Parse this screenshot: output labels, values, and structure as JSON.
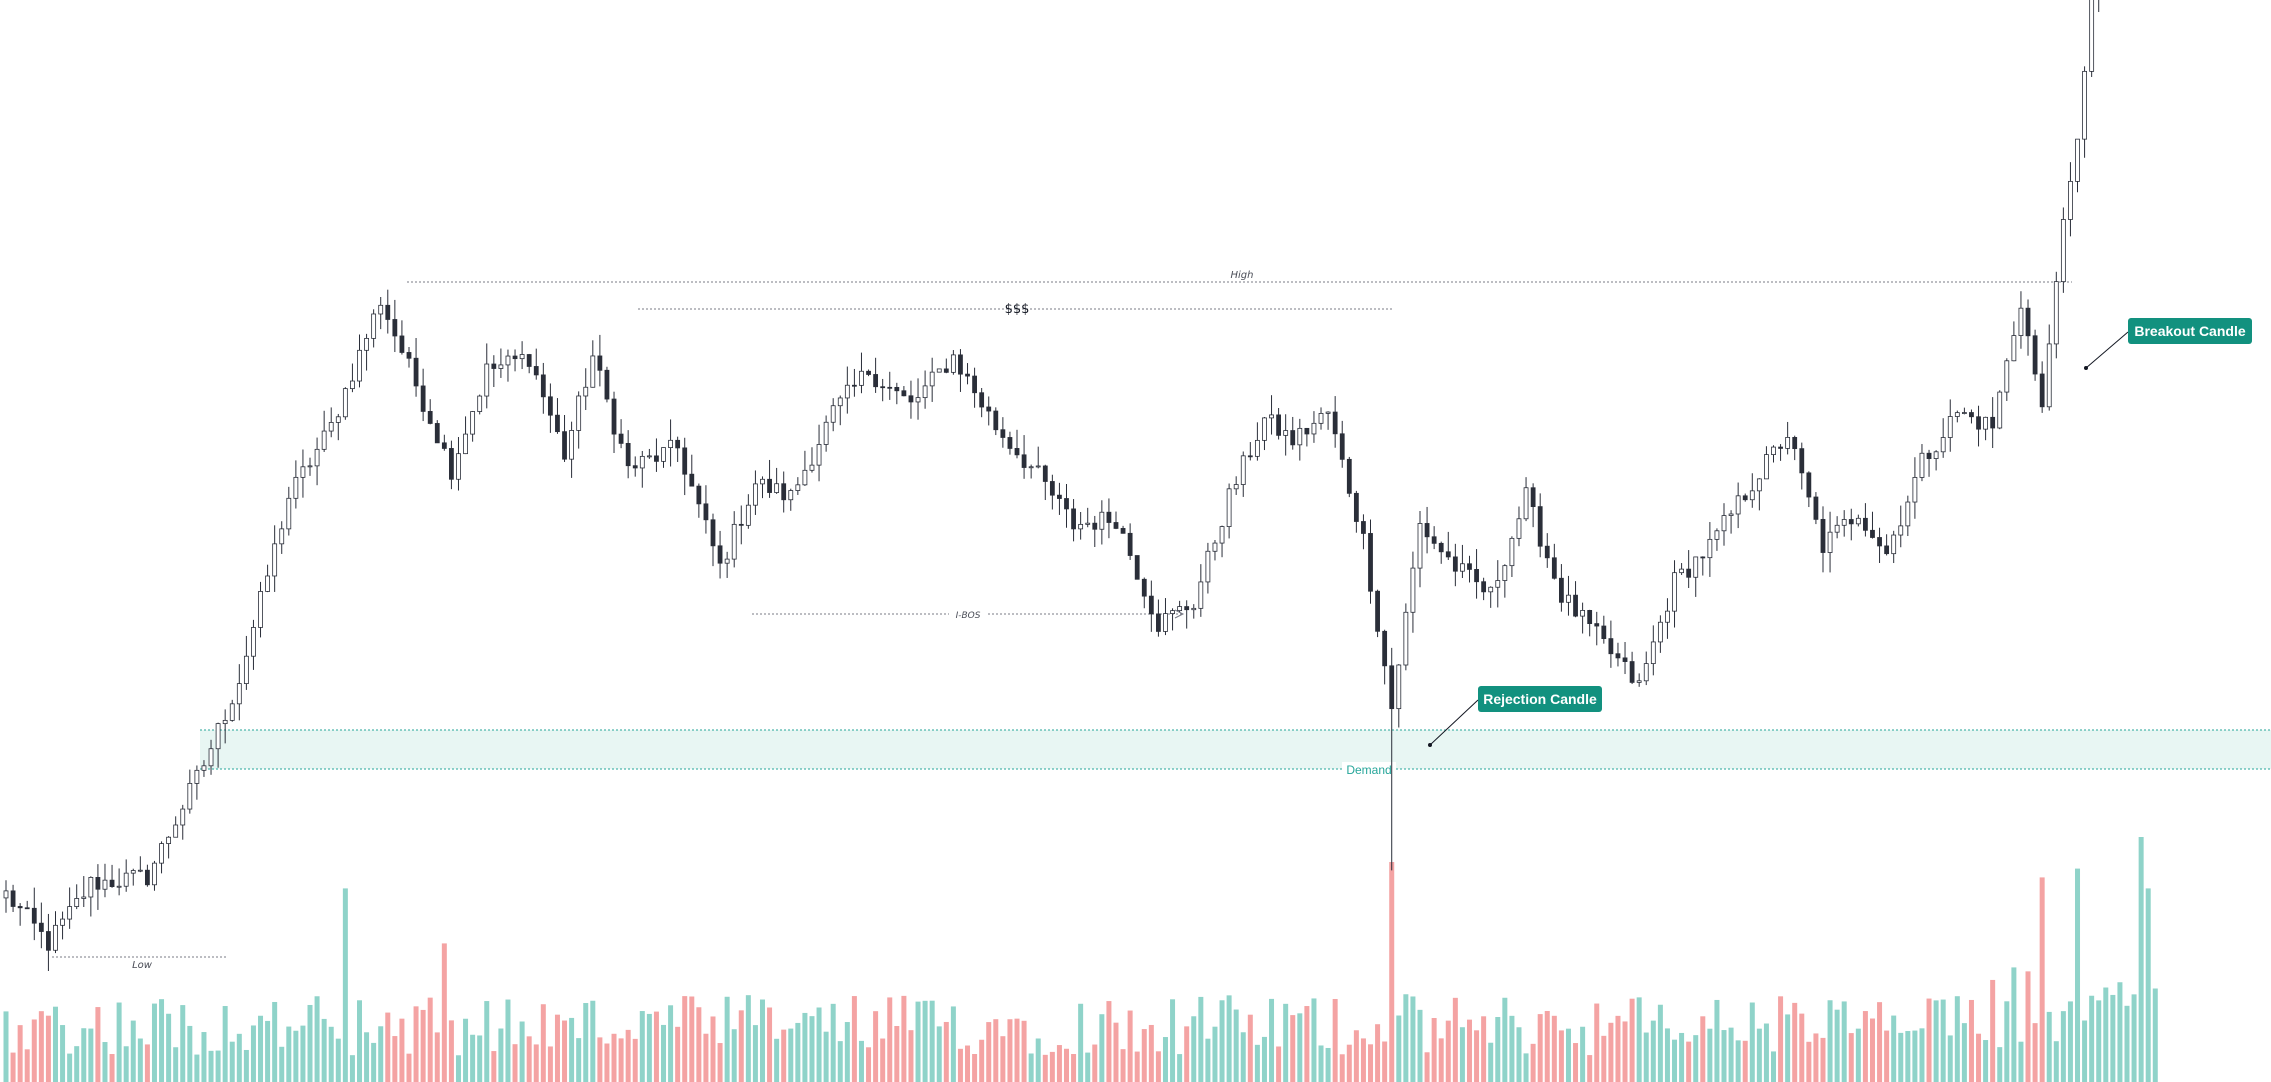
{
  "chart_data": {
    "type": "candlestick",
    "annotations": {
      "high_label": "High",
      "low_label": "Low",
      "liquidity_label": "$$$",
      "ibos_label": "I-BOS",
      "demand_label": "Demand",
      "rejection_label": "Rejection Candle",
      "breakout_label": "Breakout Candle"
    },
    "colors": {
      "up_candle_body": "#ffffff",
      "down_candle_body": "#2a2e39",
      "wick": "#2a2e39",
      "volume_up": "#8fd3c9",
      "volume_down": "#f4a3a3",
      "demand_fill": "#e8f6f3",
      "demand_border": "#26a69a",
      "tag_bg": "#12917f",
      "tag_text": "#ffffff",
      "level_line": "#787b86"
    },
    "price_anchors": [
      {
        "i": 0,
        "close": 0.115
      },
      {
        "i": 6,
        "close": 0.045
      },
      {
        "i": 12,
        "close": 0.13
      },
      {
        "i": 20,
        "close": 0.14
      },
      {
        "i": 28,
        "close": 0.3
      },
      {
        "i": 33,
        "close": 0.42
      },
      {
        "i": 40,
        "close": 0.68
      },
      {
        "i": 46,
        "close": 0.78
      },
      {
        "i": 53,
        "close": 0.96
      },
      {
        "i": 58,
        "close": 0.84
      },
      {
        "i": 63,
        "close": 0.72
      },
      {
        "i": 68,
        "close": 0.86
      },
      {
        "i": 74,
        "close": 0.88
      },
      {
        "i": 79,
        "close": 0.74
      },
      {
        "i": 83,
        "close": 0.88
      },
      {
        "i": 88,
        "close": 0.72
      },
      {
        "i": 95,
        "close": 0.75
      },
      {
        "i": 101,
        "close": 0.58
      },
      {
        "i": 106,
        "close": 0.7
      },
      {
        "i": 111,
        "close": 0.68
      },
      {
        "i": 117,
        "close": 0.8
      },
      {
        "i": 122,
        "close": 0.86
      },
      {
        "i": 128,
        "close": 0.81
      },
      {
        "i": 134,
        "close": 0.88
      },
      {
        "i": 140,
        "close": 0.78
      },
      {
        "i": 146,
        "close": 0.71
      },
      {
        "i": 151,
        "close": 0.64
      },
      {
        "i": 157,
        "close": 0.65
      },
      {
        "i": 163,
        "close": 0.5
      },
      {
        "i": 168,
        "close": 0.53
      },
      {
        "i": 173,
        "close": 0.68
      },
      {
        "i": 178,
        "close": 0.79
      },
      {
        "i": 182,
        "close": 0.76
      },
      {
        "i": 187,
        "close": 0.8
      },
      {
        "i": 192,
        "close": 0.62
      },
      {
        "i": 196,
        "close": 0.38
      },
      {
        "i": 200,
        "close": 0.64
      },
      {
        "i": 205,
        "close": 0.58
      },
      {
        "i": 210,
        "close": 0.54
      },
      {
        "i": 215,
        "close": 0.68
      },
      {
        "i": 220,
        "close": 0.54
      },
      {
        "i": 226,
        "close": 0.47
      },
      {
        "i": 231,
        "close": 0.41
      },
      {
        "i": 236,
        "close": 0.56
      },
      {
        "i": 241,
        "close": 0.61
      },
      {
        "i": 247,
        "close": 0.7
      },
      {
        "i": 252,
        "close": 0.77
      },
      {
        "i": 257,
        "close": 0.61
      },
      {
        "i": 262,
        "close": 0.66
      },
      {
        "i": 266,
        "close": 0.6
      },
      {
        "i": 271,
        "close": 0.73
      },
      {
        "i": 276,
        "close": 0.8
      },
      {
        "i": 281,
        "close": 0.78
      },
      {
        "i": 285,
        "close": 0.96
      },
      {
        "i": 288,
        "close": 0.8
      },
      {
        "i": 290,
        "close": 1.0
      },
      {
        "i": 293,
        "close": 1.18
      },
      {
        "i": 296,
        "close": 1.52
      },
      {
        "i": 299,
        "close": 1.62
      }
    ],
    "volume_spikes": [
      {
        "i": 48,
        "value": 0.88
      },
      {
        "i": 62,
        "value": 0.63
      },
      {
        "i": 196,
        "value": 1.0
      },
      {
        "i": 288,
        "value": 0.93
      },
      {
        "i": 293,
        "value": 0.97
      },
      {
        "i": 302,
        "value": 1.12
      },
      {
        "i": 303,
        "value": 0.88
      }
    ]
  }
}
